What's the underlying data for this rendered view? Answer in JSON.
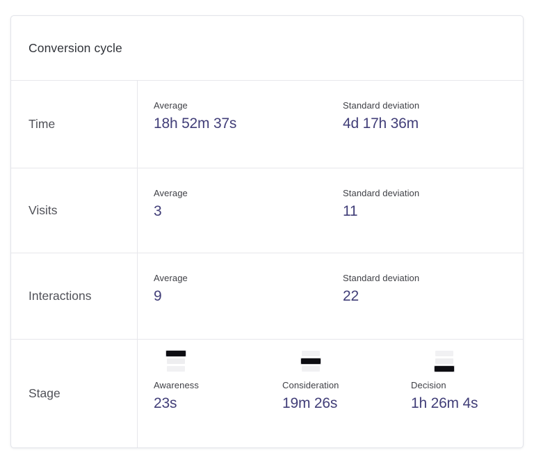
{
  "card": {
    "title": "Conversion cycle",
    "rows": [
      {
        "label": "Time",
        "metrics": [
          {
            "label": "Average",
            "value": "18h 52m 37s"
          },
          {
            "label": "Standard deviation",
            "value": "4d 17h 36m"
          }
        ]
      },
      {
        "label": "Visits",
        "metrics": [
          {
            "label": "Average",
            "value": "3"
          },
          {
            "label": "Standard deviation",
            "value": "11"
          }
        ]
      },
      {
        "label": "Interactions",
        "metrics": [
          {
            "label": "Average",
            "value": "9"
          },
          {
            "label": "Standard deviation",
            "value": "22"
          }
        ]
      },
      {
        "label": "Stage",
        "stages": [
          {
            "label": "Awareness",
            "value": "23s",
            "active_bar": 0
          },
          {
            "label": "Consideration",
            "value": "19m 26s",
            "active_bar": 1
          },
          {
            "label": "Decision",
            "value": "1h 26m 4s",
            "active_bar": 2
          }
        ]
      }
    ]
  },
  "colors": {
    "value_text": "#413e78",
    "label_text": "#3f4046",
    "row_label_text": "#505158",
    "title_text": "#303339",
    "border": "#e7e7eb",
    "funnel_active": "#0d0d12",
    "funnel_inactive": "#f1f1f3"
  }
}
